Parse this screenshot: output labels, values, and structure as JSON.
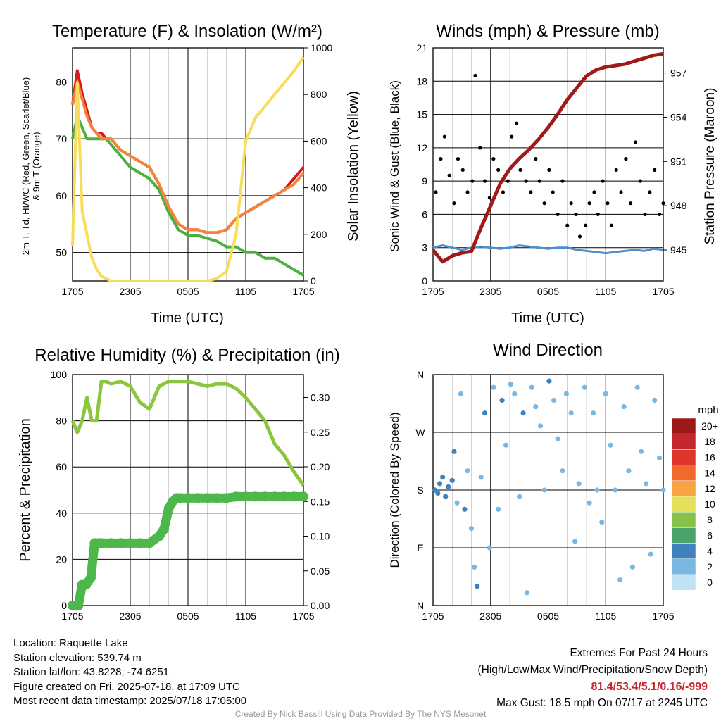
{
  "colors": {
    "temp_red": "#d7191c",
    "temp_dark": "#a81818",
    "dewpoint_green": "#4daf3f",
    "heat_index_orange": "#f4843a",
    "insolation_yellow": "#f7dd5b",
    "wind_blue": "#4d8fcc",
    "gust_black": "#000000",
    "pressure_maroon": "#a11a1a",
    "rh_lightgreen": "#8cc63f",
    "precip_green": "#4cb84a"
  },
  "panels": {
    "temp": {
      "title": "Temperature (F) & Insolation (W/m²)",
      "ylabel_line1": "2m T, Td, HI/WC (Red, Green, Scarlet/Blue)",
      "ylabel_line2": "& 9m T (Orange)",
      "y2label": "Solar Insolation (Yellow)",
      "xlabel": "Time (UTC)"
    },
    "wind": {
      "title": "Winds (mph) & Pressure (mb)",
      "ylabel": "Sonic Wind & Gust (Blue, Black)",
      "y2label": "Station Pressure (Maroon)",
      "xlabel": "Time (UTC)"
    },
    "rh": {
      "title": "Relative Humidity (%) & Precipitation (in)",
      "ylabel": "Percent & Precipitation"
    },
    "dir": {
      "title": "Wind Direction",
      "ylabel": "Direction (Colored By Speed)",
      "colorbar_title": "mph"
    }
  },
  "chart_data": [
    {
      "type": "line",
      "title": "Temperature (F) & Insolation (W/m²)",
      "xlabel": "Time (UTC)",
      "x_ticks": [
        "1705",
        "2305",
        "0505",
        "1105",
        "1705"
      ],
      "y_ticks": [
        50,
        60,
        70,
        80
      ],
      "y2_ticks": [
        0,
        200,
        400,
        600,
        800,
        1000
      ],
      "ylim": [
        45,
        86
      ],
      "y2lim": [
        0,
        1000
      ],
      "x_hours": [
        0,
        0.5,
        1,
        1.5,
        2,
        2.5,
        3,
        3.5,
        4,
        5,
        6,
        7,
        8,
        9,
        10,
        11,
        12,
        13,
        14,
        15,
        16,
        17,
        18,
        19,
        20,
        21,
        22,
        23,
        24
      ],
      "series": [
        {
          "key": "temp",
          "color": "#d7191c",
          "axis": "left",
          "values": [
            76,
            82,
            78,
            75,
            72,
            71,
            71,
            70,
            70,
            68,
            67,
            66,
            65,
            62,
            58,
            55,
            54,
            54,
            53.5,
            53.5,
            54,
            56,
            57,
            58,
            59,
            60,
            61,
            63,
            65
          ]
        },
        {
          "key": "dewpoint",
          "color": "#4daf3f",
          "axis": "left",
          "values": [
            70,
            74,
            72,
            70,
            70,
            70,
            70,
            70,
            69,
            67,
            65,
            64,
            63,
            61,
            57,
            54,
            53,
            53,
            52.5,
            52,
            51,
            51,
            50,
            50,
            49,
            49,
            48,
            47,
            46
          ]
        },
        {
          "key": "heat_index",
          "color": "#f4843a",
          "axis": "left",
          "values": [
            76,
            80,
            77,
            74,
            72,
            71,
            70,
            70,
            70,
            68,
            67,
            66,
            65,
            62,
            58,
            55,
            54,
            54,
            53.5,
            53.5,
            54,
            56,
            57,
            58,
            59,
            60,
            61,
            62,
            64
          ]
        },
        {
          "key": "insolation",
          "color": "#f7dd5b",
          "axis": "right",
          "values": [
            150,
            850,
            300,
            200,
            100,
            50,
            20,
            10,
            0,
            0,
            0,
            0,
            0,
            0,
            0,
            0,
            0,
            0,
            0,
            10,
            40,
            200,
            600,
            700,
            750,
            800,
            850,
            900,
            960
          ]
        }
      ]
    },
    {
      "type": "line",
      "title": "Winds (mph) & Pressure (mb)",
      "xlabel": "Time (UTC)",
      "x_ticks": [
        "1705",
        "2305",
        "0505",
        "1105",
        "1705"
      ],
      "y_ticks": [
        0,
        3,
        6,
        9,
        12,
        15,
        18,
        21
      ],
      "y2_ticks": [
        945,
        948,
        951,
        954,
        957
      ],
      "ylim": [
        0,
        21
      ],
      "y2lim": [
        942.9,
        958.7
      ],
      "pressure": {
        "color": "#a11a1a",
        "x_hours": [
          0,
          1,
          2,
          3,
          4,
          5,
          6,
          7,
          8,
          9,
          10,
          11,
          12,
          13,
          14,
          15,
          16,
          17,
          18,
          19,
          20,
          21,
          22,
          23,
          24
        ],
        "values": [
          945,
          944.2,
          944.6,
          944.8,
          944.9,
          946.5,
          948,
          949.5,
          950.5,
          951.2,
          951.8,
          952.5,
          953.3,
          954.2,
          955.2,
          956,
          956.8,
          957.2,
          957.4,
          957.5,
          957.6,
          957.8,
          958,
          958.2,
          958.3
        ]
      },
      "wind": {
        "color": "#4d8fcc",
        "x_hours": [
          0,
          1,
          2,
          3,
          4,
          5,
          6,
          7,
          8,
          9,
          10,
          11,
          12,
          13,
          14,
          15,
          16,
          17,
          18,
          19,
          20,
          21,
          22,
          23,
          24
        ],
        "values": [
          3,
          3.2,
          3,
          2.8,
          3,
          3.1,
          3,
          2.9,
          3,
          3.2,
          3.1,
          3,
          2.9,
          3,
          3,
          2.8,
          2.7,
          2.6,
          2.5,
          2.6,
          2.7,
          2.8,
          2.7,
          2.9,
          2.8
        ]
      },
      "gust_points": [
        [
          0.3,
          8
        ],
        [
          0.8,
          11
        ],
        [
          1.2,
          13
        ],
        [
          1.7,
          9.5
        ],
        [
          2.2,
          7
        ],
        [
          2.6,
          11
        ],
        [
          3.1,
          10
        ],
        [
          3.6,
          8
        ],
        [
          4.1,
          9
        ],
        [
          4.4,
          18.5
        ],
        [
          4.9,
          12
        ],
        [
          5.4,
          9
        ],
        [
          5.9,
          7.5
        ],
        [
          6.3,
          11
        ],
        [
          6.8,
          10
        ],
        [
          7.3,
          8
        ],
        [
          7.8,
          9
        ],
        [
          8.2,
          13
        ],
        [
          8.7,
          14.2
        ],
        [
          9.1,
          10
        ],
        [
          9.7,
          9
        ],
        [
          10.2,
          8
        ],
        [
          10.7,
          11
        ],
        [
          11.1,
          9
        ],
        [
          11.6,
          7
        ],
        [
          12.1,
          10
        ],
        [
          12.5,
          8
        ],
        [
          13.0,
          6
        ],
        [
          13.5,
          9
        ],
        [
          14.0,
          5
        ],
        [
          14.4,
          7
        ],
        [
          14.9,
          6
        ],
        [
          15.3,
          4
        ],
        [
          15.9,
          5
        ],
        [
          16.3,
          7
        ],
        [
          16.8,
          8
        ],
        [
          17.2,
          6
        ],
        [
          17.7,
          9
        ],
        [
          18.2,
          7
        ],
        [
          18.6,
          5
        ],
        [
          19.1,
          10
        ],
        [
          19.6,
          8
        ],
        [
          20.1,
          11
        ],
        [
          20.6,
          7
        ],
        [
          21.1,
          12.5
        ],
        [
          21.6,
          9
        ],
        [
          22.1,
          6
        ],
        [
          22.6,
          8
        ],
        [
          23.1,
          10
        ],
        [
          23.6,
          6
        ],
        [
          24.0,
          7
        ]
      ],
      "gust_color": "#000000"
    },
    {
      "type": "line",
      "title": "Relative Humidity (%) & Precipitation (in)",
      "x_ticks": [
        "1705",
        "2305",
        "0505",
        "1105",
        "1705"
      ],
      "y_ticks": [
        0,
        20,
        40,
        60,
        80,
        100
      ],
      "y2_ticks": [
        "0.00",
        "0.05",
        "0.10",
        "0.15",
        "0.20",
        "0.25",
        "0.30"
      ],
      "ylim": [
        0,
        100
      ],
      "y2lim": [
        0,
        0.333
      ],
      "rh": {
        "color": "#8cc63f",
        "x_hours": [
          0,
          0.5,
          1,
          1.5,
          2,
          2.5,
          3,
          3.5,
          4,
          5,
          6,
          7,
          8,
          9,
          10,
          11,
          12,
          13,
          14,
          15,
          16,
          17,
          18,
          19,
          20,
          21,
          22,
          23,
          24
        ],
        "values": [
          80,
          75,
          80,
          90,
          80,
          80,
          97,
          97,
          96,
          97,
          95,
          88,
          85,
          95,
          97,
          97,
          97,
          96,
          95,
          96,
          96,
          94,
          90,
          85,
          80,
          70,
          65,
          58,
          52
        ]
      },
      "precip": {
        "color": "#4cb84a",
        "x_hours": [
          0,
          0.6,
          1,
          1.4,
          1.9,
          2.3,
          2.7,
          3,
          4,
          5,
          6,
          7,
          8,
          9,
          9.5,
          10,
          10.4,
          10.8,
          11.2,
          12,
          13,
          14,
          15,
          16,
          17,
          18,
          19,
          20,
          21,
          22,
          23,
          24
        ],
        "values": [
          0,
          0,
          0.03,
          0.03,
          0.04,
          0.09,
          0.09,
          0.09,
          0.09,
          0.09,
          0.09,
          0.09,
          0.09,
          0.1,
          0.11,
          0.14,
          0.15,
          0.155,
          0.155,
          0.155,
          0.155,
          0.155,
          0.155,
          0.155,
          0.157,
          0.157,
          0.157,
          0.157,
          0.157,
          0.157,
          0.157,
          0.157
        ]
      }
    },
    {
      "type": "scatter",
      "title": "Wind Direction",
      "ylabel": "Direction (Colored By Speed)",
      "x_ticks": [
        "1705",
        "2305",
        "0505",
        "1105",
        "1705"
      ],
      "y_ticks": [
        "N",
        "E",
        "S",
        "W",
        "N"
      ],
      "ylim": [
        0,
        360
      ],
      "colorbar": {
        "title": "mph",
        "labels": [
          "20+",
          "18",
          "16",
          "14",
          "12",
          "10",
          "8",
          "6",
          "4",
          "2",
          "0"
        ],
        "colors": [
          "#9e1a1a",
          "#c4262e",
          "#e0352b",
          "#f06a2c",
          "#f9a444",
          "#e5df5c",
          "#86c24a",
          "#4aa36a",
          "#3f82bd",
          "#7ab7e2",
          "#bfe3f5"
        ]
      },
      "points": [
        [
          0.2,
          180,
          3
        ],
        [
          0.5,
          175,
          3
        ],
        [
          0.7,
          190,
          3
        ],
        [
          1.0,
          200,
          4
        ],
        [
          1.3,
          170,
          3
        ],
        [
          1.6,
          185,
          3
        ],
        [
          2.0,
          195,
          3
        ],
        [
          2.2,
          240,
          4
        ],
        [
          2.5,
          160,
          2
        ],
        [
          2.9,
          330,
          2
        ],
        [
          3.3,
          150,
          3
        ],
        [
          3.6,
          210,
          2
        ],
        [
          4.0,
          120,
          2
        ],
        [
          4.3,
          60,
          2
        ],
        [
          4.6,
          30,
          3
        ],
        [
          5.0,
          200,
          2
        ],
        [
          5.4,
          300,
          3
        ],
        [
          5.9,
          90,
          2
        ],
        [
          6.3,
          340,
          2
        ],
        [
          6.8,
          150,
          2
        ],
        [
          7.2,
          320,
          3
        ],
        [
          7.6,
          250,
          2
        ],
        [
          8.1,
          345,
          2
        ],
        [
          8.5,
          330,
          2
        ],
        [
          9.0,
          170,
          2
        ],
        [
          9.4,
          300,
          3
        ],
        [
          9.8,
          20,
          2
        ],
        [
          10.3,
          340,
          2
        ],
        [
          10.7,
          310,
          2
        ],
        [
          11.2,
          280,
          2
        ],
        [
          11.6,
          180,
          2
        ],
        [
          12.1,
          350,
          3
        ],
        [
          12.6,
          320,
          2
        ],
        [
          13.0,
          260,
          2
        ],
        [
          13.5,
          210,
          2
        ],
        [
          13.9,
          330,
          2
        ],
        [
          14.4,
          300,
          2
        ],
        [
          14.8,
          100,
          2
        ],
        [
          15.2,
          190,
          1
        ],
        [
          15.8,
          340,
          2
        ],
        [
          16.3,
          160,
          1
        ],
        [
          16.7,
          300,
          2
        ],
        [
          17.1,
          180,
          1
        ],
        [
          17.6,
          130,
          1
        ],
        [
          18.0,
          330,
          2
        ],
        [
          18.5,
          250,
          2
        ],
        [
          19.0,
          180,
          2
        ],
        [
          19.5,
          40,
          2
        ],
        [
          19.9,
          310,
          2
        ],
        [
          20.4,
          210,
          2
        ],
        [
          20.8,
          60,
          2
        ],
        [
          21.3,
          340,
          2
        ],
        [
          21.7,
          240,
          2
        ],
        [
          22.2,
          190,
          2
        ],
        [
          22.7,
          80,
          2
        ],
        [
          23.1,
          320,
          2
        ],
        [
          23.6,
          230,
          2
        ],
        [
          24.0,
          180,
          2
        ]
      ]
    }
  ],
  "info": {
    "location": "Location: Raquette Lake",
    "elevation": "Station elevation: 539.74 m",
    "latlon": "Station lat/lon: 43.8228; -74.6251",
    "created": "Figure created on Fri, 2025-07-18, at 17:09 UTC",
    "recent": "Most recent data timestamp: 2025/07/18 17:05:00"
  },
  "extremes": {
    "title": "Extremes For Past 24 Hours",
    "subtitle": "(High/Low/Max Wind/Precipitation/Snow Depth)",
    "values": "81.4/53.4/5.1/0.16/-999",
    "gust": "Max Gust: 18.5 mph On 07/17 at 2245 UTC"
  },
  "credit": "Created By Nick Bassill Using Data Provided By The NYS Mesonet"
}
